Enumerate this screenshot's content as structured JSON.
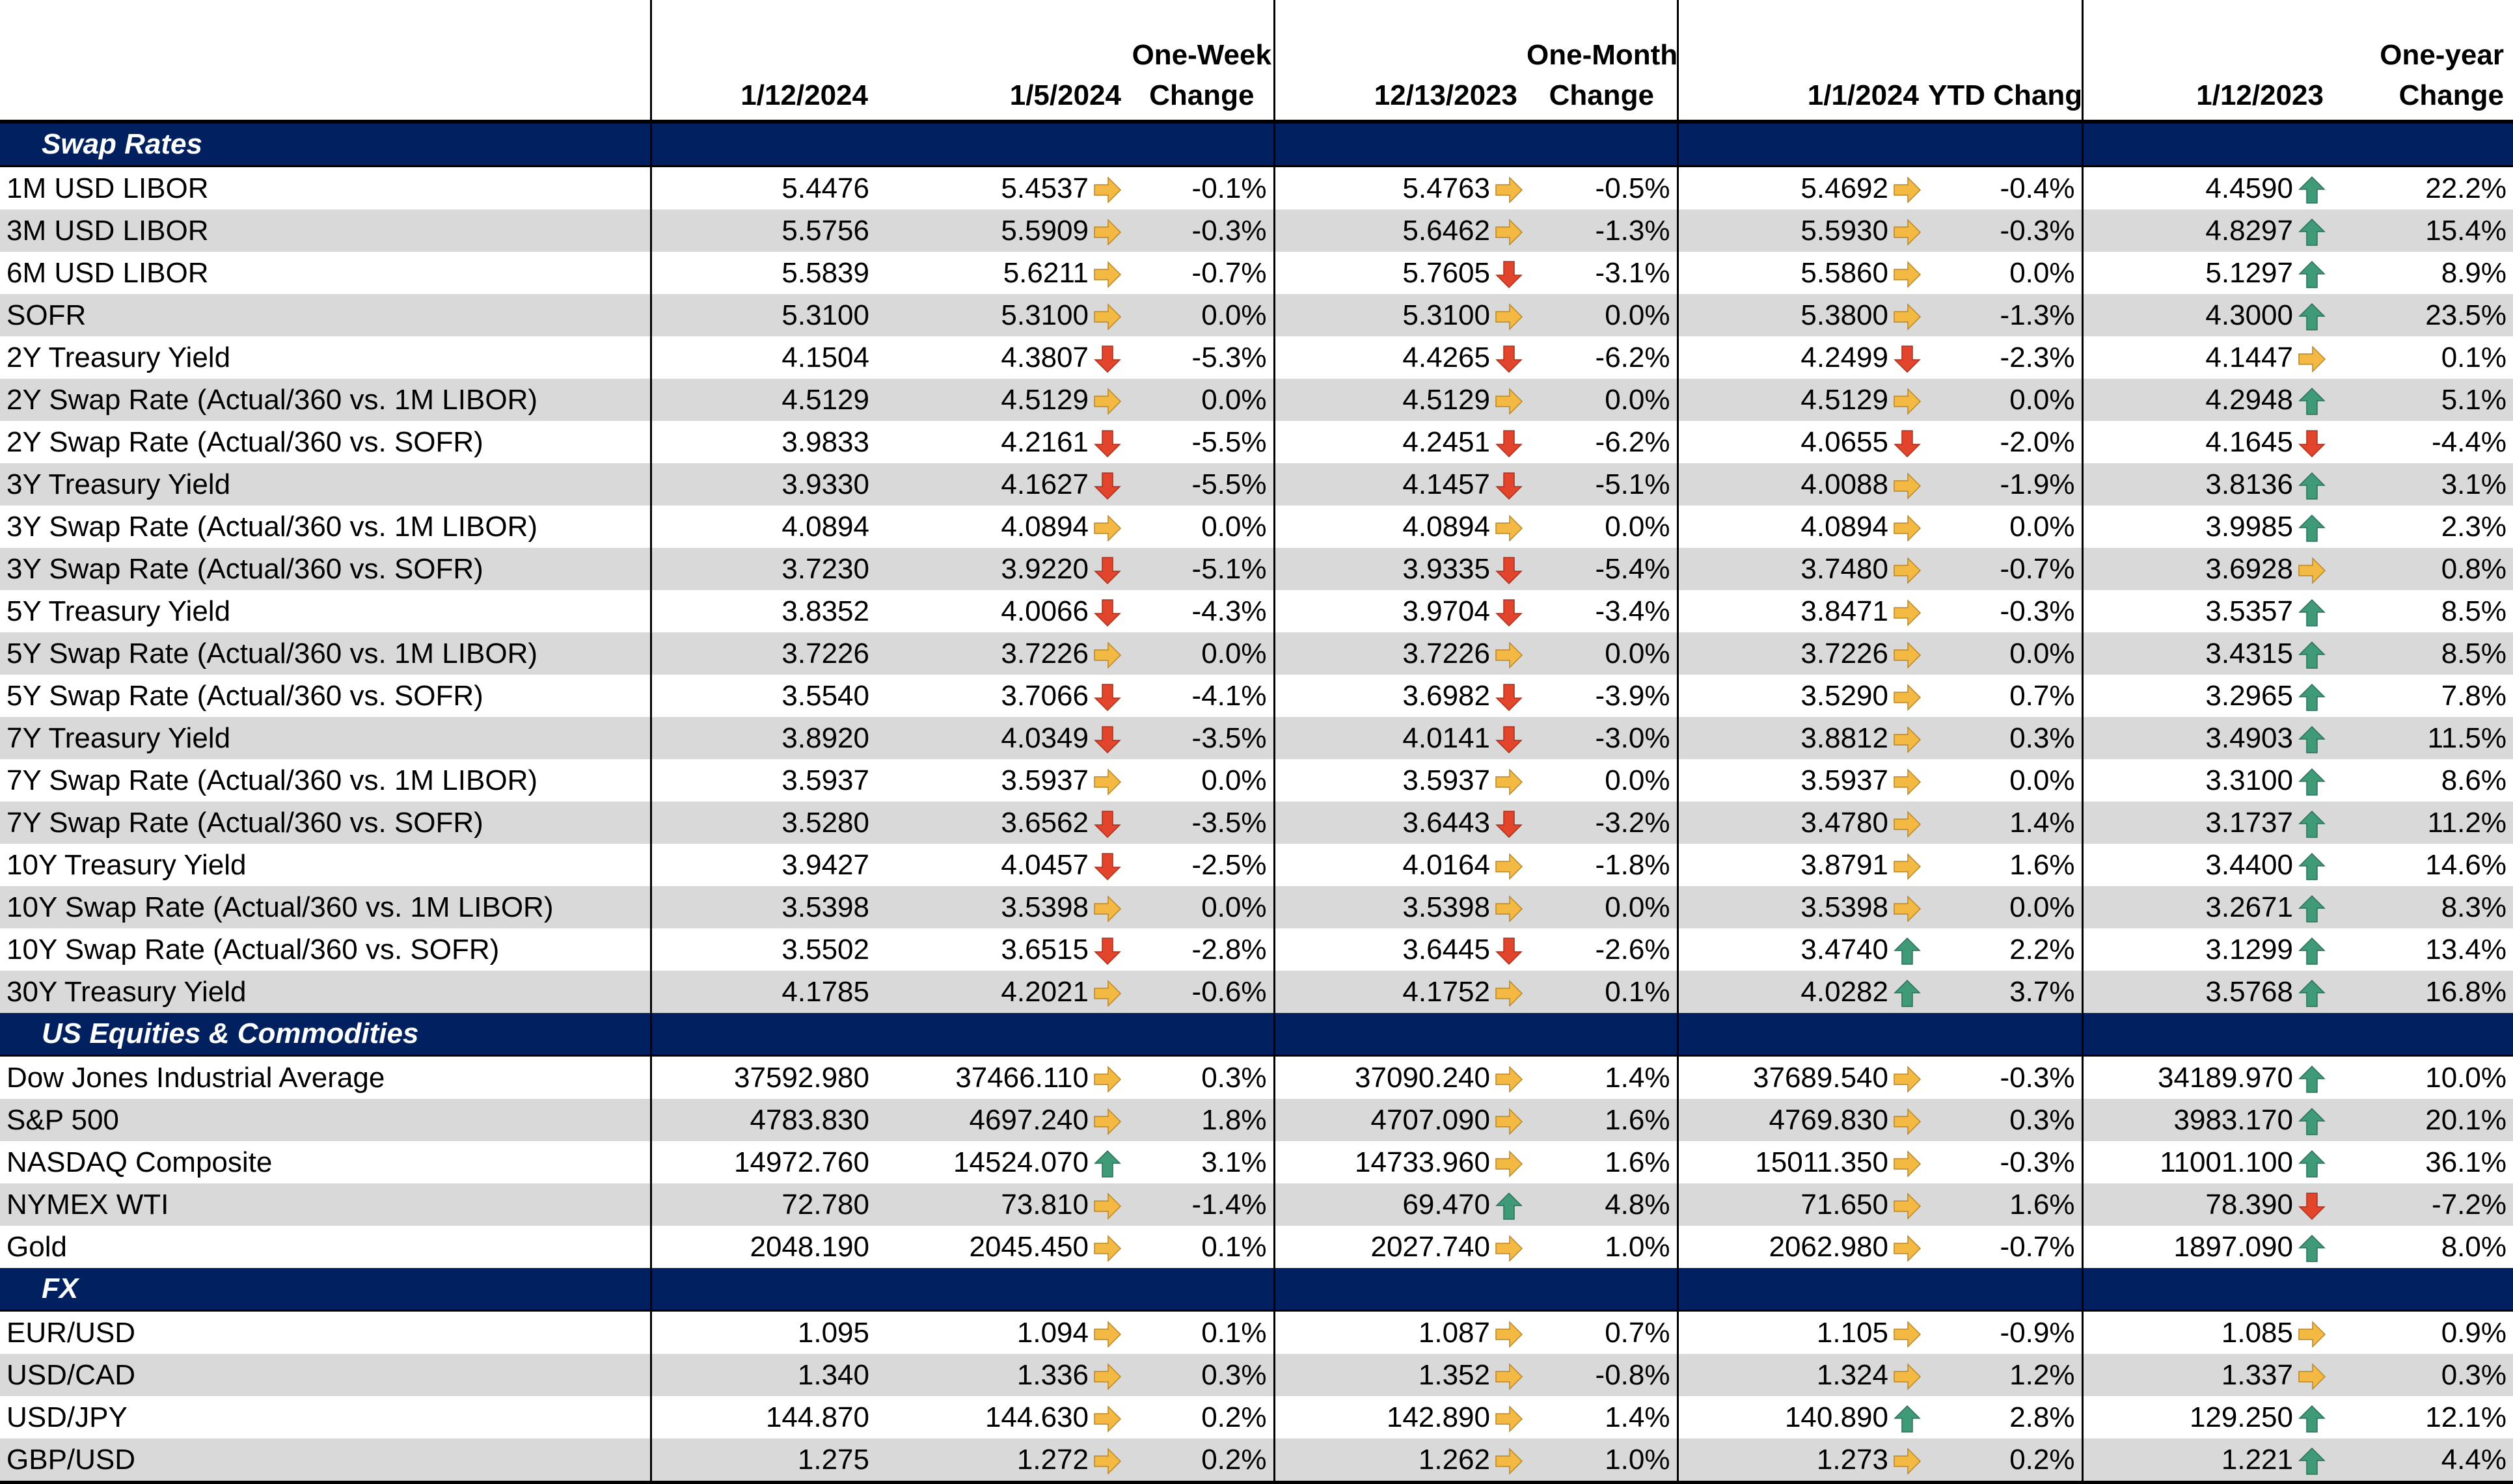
{
  "headers": {
    "col1": "1/12/2024",
    "col2": "1/5/2024",
    "col3_line1": "One-Week",
    "col3_line2": "Change",
    "col4": "12/13/2023",
    "col5_line1": "One-Month",
    "col5_line2": "Change",
    "col6": "1/1/2024",
    "col7": "YTD Change",
    "col8": "1/12/2023",
    "col9_line1": "One-year",
    "col9_line2": "Change"
  },
  "colors": {
    "section_bg": "#002060",
    "alt_row": "#d9d9d9",
    "arrow_right": "#F4B942",
    "arrow_up": "#3E9A77",
    "arrow_down": "#E2452C"
  },
  "sections": [
    {
      "title": "Swap Rates",
      "rows": [
        {
          "label": "1M USD LIBOR",
          "v1": "5.4476",
          "v2": "5.4537",
          "a2": "right",
          "c2": "-0.1%",
          "v4": "5.4763",
          "a4": "right",
          "c4": "-0.5%",
          "v6": "5.4692",
          "a6": "right",
          "c6": "-0.4%",
          "v8": "4.4590",
          "a8": "up",
          "c8": "22.2%"
        },
        {
          "label": "3M USD LIBOR",
          "v1": "5.5756",
          "v2": "5.5909",
          "a2": "right",
          "c2": "-0.3%",
          "v4": "5.6462",
          "a4": "right",
          "c4": "-1.3%",
          "v6": "5.5930",
          "a6": "right",
          "c6": "-0.3%",
          "v8": "4.8297",
          "a8": "up",
          "c8": "15.4%"
        },
        {
          "label": "6M USD LIBOR",
          "v1": "5.5839",
          "v2": "5.6211",
          "a2": "right",
          "c2": "-0.7%",
          "v4": "5.7605",
          "a4": "down",
          "c4": "-3.1%",
          "v6": "5.5860",
          "a6": "right",
          "c6": "0.0%",
          "v8": "5.1297",
          "a8": "up",
          "c8": "8.9%"
        },
        {
          "label": "SOFR",
          "v1": "5.3100",
          "v2": "5.3100",
          "a2": "right",
          "c2": "0.0%",
          "v4": "5.3100",
          "a4": "right",
          "c4": "0.0%",
          "v6": "5.3800",
          "a6": "right",
          "c6": "-1.3%",
          "v8": "4.3000",
          "a8": "up",
          "c8": "23.5%"
        },
        {
          "label": "2Y Treasury Yield",
          "v1": "4.1504",
          "v2": "4.3807",
          "a2": "down",
          "c2": "-5.3%",
          "v4": "4.4265",
          "a4": "down",
          "c4": "-6.2%",
          "v6": "4.2499",
          "a6": "down",
          "c6": "-2.3%",
          "v8": "4.1447",
          "a8": "right",
          "c8": "0.1%"
        },
        {
          "label": "2Y Swap Rate (Actual/360 vs. 1M LIBOR)",
          "v1": "4.5129",
          "v2": "4.5129",
          "a2": "right",
          "c2": "0.0%",
          "v4": "4.5129",
          "a4": "right",
          "c4": "0.0%",
          "v6": "4.5129",
          "a6": "right",
          "c6": "0.0%",
          "v8": "4.2948",
          "a8": "up",
          "c8": "5.1%"
        },
        {
          "label": "2Y Swap Rate (Actual/360 vs. SOFR)",
          "v1": "3.9833",
          "v2": "4.2161",
          "a2": "down",
          "c2": "-5.5%",
          "v4": "4.2451",
          "a4": "down",
          "c4": "-6.2%",
          "v6": "4.0655",
          "a6": "down",
          "c6": "-2.0%",
          "v8": "4.1645",
          "a8": "down",
          "c8": "-4.4%"
        },
        {
          "label": "3Y Treasury Yield",
          "v1": "3.9330",
          "v2": "4.1627",
          "a2": "down",
          "c2": "-5.5%",
          "v4": "4.1457",
          "a4": "down",
          "c4": "-5.1%",
          "v6": "4.0088",
          "a6": "right",
          "c6": "-1.9%",
          "v8": "3.8136",
          "a8": "up",
          "c8": "3.1%"
        },
        {
          "label": "3Y Swap Rate (Actual/360 vs. 1M LIBOR)",
          "v1": "4.0894",
          "v2": "4.0894",
          "a2": "right",
          "c2": "0.0%",
          "v4": "4.0894",
          "a4": "right",
          "c4": "0.0%",
          "v6": "4.0894",
          "a6": "right",
          "c6": "0.0%",
          "v8": "3.9985",
          "a8": "up",
          "c8": "2.3%"
        },
        {
          "label": "3Y Swap Rate (Actual/360 vs. SOFR)",
          "v1": "3.7230",
          "v2": "3.9220",
          "a2": "down",
          "c2": "-5.1%",
          "v4": "3.9335",
          "a4": "down",
          "c4": "-5.4%",
          "v6": "3.7480",
          "a6": "right",
          "c6": "-0.7%",
          "v8": "3.6928",
          "a8": "right",
          "c8": "0.8%"
        },
        {
          "label": "5Y Treasury Yield",
          "v1": "3.8352",
          "v2": "4.0066",
          "a2": "down",
          "c2": "-4.3%",
          "v4": "3.9704",
          "a4": "down",
          "c4": "-3.4%",
          "v6": "3.8471",
          "a6": "right",
          "c6": "-0.3%",
          "v8": "3.5357",
          "a8": "up",
          "c8": "8.5%"
        },
        {
          "label": "5Y Swap Rate (Actual/360 vs. 1M LIBOR)",
          "v1": "3.7226",
          "v2": "3.7226",
          "a2": "right",
          "c2": "0.0%",
          "v4": "3.7226",
          "a4": "right",
          "c4": "0.0%",
          "v6": "3.7226",
          "a6": "right",
          "c6": "0.0%",
          "v8": "3.4315",
          "a8": "up",
          "c8": "8.5%"
        },
        {
          "label": "5Y Swap Rate (Actual/360 vs. SOFR)",
          "v1": "3.5540",
          "v2": "3.7066",
          "a2": "down",
          "c2": "-4.1%",
          "v4": "3.6982",
          "a4": "down",
          "c4": "-3.9%",
          "v6": "3.5290",
          "a6": "right",
          "c6": "0.7%",
          "v8": "3.2965",
          "a8": "up",
          "c8": "7.8%"
        },
        {
          "label": "7Y Treasury Yield",
          "v1": "3.8920",
          "v2": "4.0349",
          "a2": "down",
          "c2": "-3.5%",
          "v4": "4.0141",
          "a4": "down",
          "c4": "-3.0%",
          "v6": "3.8812",
          "a6": "right",
          "c6": "0.3%",
          "v8": "3.4903",
          "a8": "up",
          "c8": "11.5%"
        },
        {
          "label": "7Y Swap Rate (Actual/360 vs. 1M LIBOR)",
          "v1": "3.5937",
          "v2": "3.5937",
          "a2": "right",
          "c2": "0.0%",
          "v4": "3.5937",
          "a4": "right",
          "c4": "0.0%",
          "v6": "3.5937",
          "a6": "right",
          "c6": "0.0%",
          "v8": "3.3100",
          "a8": "up",
          "c8": "8.6%"
        },
        {
          "label": "7Y Swap Rate (Actual/360 vs. SOFR)",
          "v1": "3.5280",
          "v2": "3.6562",
          "a2": "down",
          "c2": "-3.5%",
          "v4": "3.6443",
          "a4": "down",
          "c4": "-3.2%",
          "v6": "3.4780",
          "a6": "right",
          "c6": "1.4%",
          "v8": "3.1737",
          "a8": "up",
          "c8": "11.2%"
        },
        {
          "label": "10Y Treasury Yield",
          "v1": "3.9427",
          "v2": "4.0457",
          "a2": "down",
          "c2": "-2.5%",
          "v4": "4.0164",
          "a4": "right",
          "c4": "-1.8%",
          "v6": "3.8791",
          "a6": "right",
          "c6": "1.6%",
          "v8": "3.4400",
          "a8": "up",
          "c8": "14.6%"
        },
        {
          "label": "10Y Swap Rate (Actual/360 vs. 1M LIBOR)",
          "v1": "3.5398",
          "v2": "3.5398",
          "a2": "right",
          "c2": "0.0%",
          "v4": "3.5398",
          "a4": "right",
          "c4": "0.0%",
          "v6": "3.5398",
          "a6": "right",
          "c6": "0.0%",
          "v8": "3.2671",
          "a8": "up",
          "c8": "8.3%"
        },
        {
          "label": "10Y Swap Rate (Actual/360 vs. SOFR)",
          "v1": "3.5502",
          "v2": "3.6515",
          "a2": "down",
          "c2": "-2.8%",
          "v4": "3.6445",
          "a4": "down",
          "c4": "-2.6%",
          "v6": "3.4740",
          "a6": "up",
          "c6": "2.2%",
          "v8": "3.1299",
          "a8": "up",
          "c8": "13.4%"
        },
        {
          "label": "30Y Treasury Yield",
          "v1": "4.1785",
          "v2": "4.2021",
          "a2": "right",
          "c2": "-0.6%",
          "v4": "4.1752",
          "a4": "right",
          "c4": "0.1%",
          "v6": "4.0282",
          "a6": "up",
          "c6": "3.7%",
          "v8": "3.5768",
          "a8": "up",
          "c8": "16.8%"
        }
      ]
    },
    {
      "title": "US Equities & Commodities",
      "rows": [
        {
          "label": "Dow Jones Industrial Average",
          "v1": "37592.980",
          "v2": "37466.110",
          "a2": "right",
          "c2": "0.3%",
          "v4": "37090.240",
          "a4": "right",
          "c4": "1.4%",
          "v6": "37689.540",
          "a6": "right",
          "c6": "-0.3%",
          "v8": "34189.970",
          "a8": "up",
          "c8": "10.0%"
        },
        {
          "label": "S&P 500",
          "v1": "4783.830",
          "v2": "4697.240",
          "a2": "right",
          "c2": "1.8%",
          "v4": "4707.090",
          "a4": "right",
          "c4": "1.6%",
          "v6": "4769.830",
          "a6": "right",
          "c6": "0.3%",
          "v8": "3983.170",
          "a8": "up",
          "c8": "20.1%"
        },
        {
          "label": "NASDAQ Composite",
          "v1": "14972.760",
          "v2": "14524.070",
          "a2": "up",
          "c2": "3.1%",
          "v4": "14733.960",
          "a4": "right",
          "c4": "1.6%",
          "v6": "15011.350",
          "a6": "right",
          "c6": "-0.3%",
          "v8": "11001.100",
          "a8": "up",
          "c8": "36.1%"
        },
        {
          "label": "NYMEX WTI",
          "v1": "72.780",
          "v2": "73.810",
          "a2": "right",
          "c2": "-1.4%",
          "v4": "69.470",
          "a4": "up",
          "c4": "4.8%",
          "v6": "71.650",
          "a6": "right",
          "c6": "1.6%",
          "v8": "78.390",
          "a8": "down",
          "c8": "-7.2%"
        },
        {
          "label": "Gold",
          "v1": "2048.190",
          "v2": "2045.450",
          "a2": "right",
          "c2": "0.1%",
          "v4": "2027.740",
          "a4": "right",
          "c4": "1.0%",
          "v6": "2062.980",
          "a6": "right",
          "c6": "-0.7%",
          "v8": "1897.090",
          "a8": "up",
          "c8": "8.0%"
        }
      ]
    },
    {
      "title": "FX",
      "rows": [
        {
          "label": "EUR/USD",
          "v1": "1.095",
          "v2": "1.094",
          "a2": "right",
          "c2": "0.1%",
          "v4": "1.087",
          "a4": "right",
          "c4": "0.7%",
          "v6": "1.105",
          "a6": "right",
          "c6": "-0.9%",
          "v8": "1.085",
          "a8": "right",
          "c8": "0.9%"
        },
        {
          "label": "USD/CAD",
          "v1": "1.340",
          "v2": "1.336",
          "a2": "right",
          "c2": "0.3%",
          "v4": "1.352",
          "a4": "right",
          "c4": "-0.8%",
          "v6": "1.324",
          "a6": "right",
          "c6": "1.2%",
          "v8": "1.337",
          "a8": "right",
          "c8": "0.3%"
        },
        {
          "label": "USD/JPY",
          "v1": "144.870",
          "v2": "144.630",
          "a2": "right",
          "c2": "0.2%",
          "v4": "142.890",
          "a4": "right",
          "c4": "1.4%",
          "v6": "140.890",
          "a6": "up",
          "c6": "2.8%",
          "v8": "129.250",
          "a8": "up",
          "c8": "12.1%"
        },
        {
          "label": "GBP/USD",
          "v1": "1.275",
          "v2": "1.272",
          "a2": "right",
          "c2": "0.2%",
          "v4": "1.262",
          "a4": "right",
          "c4": "1.0%",
          "v6": "1.273",
          "a6": "right",
          "c6": "0.2%",
          "v8": "1.221",
          "a8": "up",
          "c8": "4.4%"
        }
      ]
    }
  ]
}
